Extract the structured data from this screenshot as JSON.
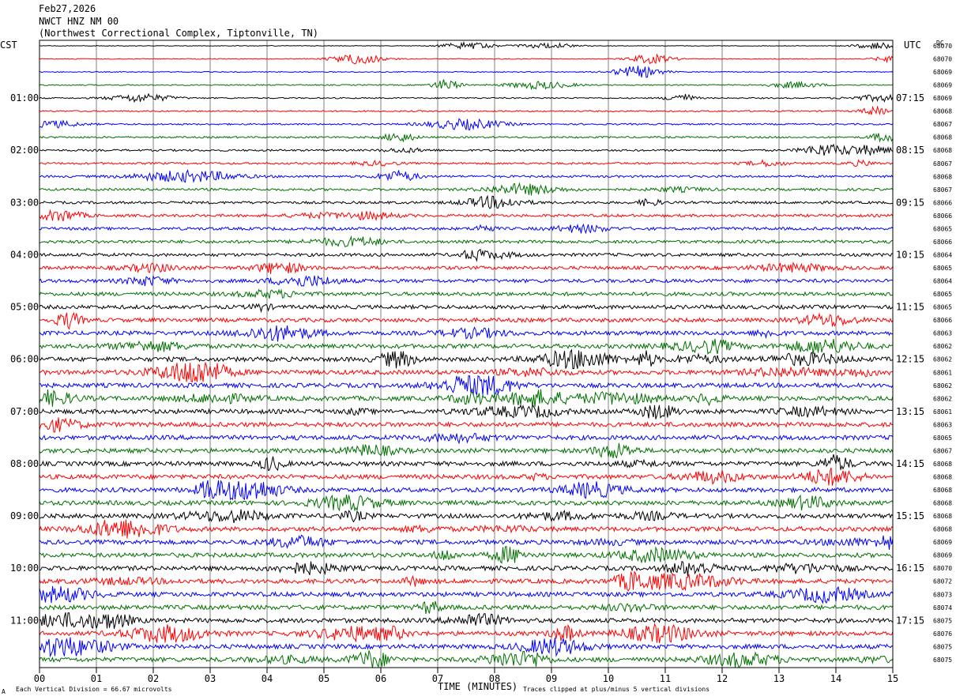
{
  "header": {
    "date": "Feb27,2026",
    "station": "NWCT HNZ NM 00",
    "location": "(Northwest Correctional Complex, Tiptonville, TN)"
  },
  "left_timezone": "CST",
  "right_timezone": "UTC",
  "dc_header": "DC",
  "footer": {
    "scale_note": "Each Vertical Division =   66.67 microvolts",
    "clip_note": "Traces clipped at plus/minus 5 vertical divisions",
    "corner_mark": "A"
  },
  "chart_data": {
    "type": "line",
    "xlabel": "TIME (MINUTES)",
    "xlim": [
      0,
      15
    ],
    "x_ticks": [
      "00",
      "01",
      "02",
      "03",
      "04",
      "05",
      "06",
      "07",
      "08",
      "09",
      "10",
      "11",
      "12",
      "13",
      "14",
      "15"
    ],
    "rows_per_hour": 4,
    "trace_colors": [
      "#000000",
      "#ff0000",
      "#0000ff",
      "#007000"
    ],
    "left_labels": [
      "01:00",
      "02:00",
      "03:00",
      "04:00",
      "05:00",
      "06:00",
      "07:00",
      "08:00",
      "09:00",
      "10:00",
      "11:00"
    ],
    "right_labels": [
      "07:15",
      "08:15",
      "09:15",
      "10:15",
      "11:15",
      "12:15",
      "13:15",
      "14:15",
      "15:15",
      "16:15",
      "17:15"
    ],
    "dc_offsets": [
      "68070",
      "68070",
      "68069",
      "68069",
      "68069",
      "68068",
      "68067",
      "68068",
      "68068",
      "68067",
      "68068",
      "68067",
      "68066",
      "68066",
      "68065",
      "68066",
      "68064",
      "68065",
      "68064",
      "68065",
      "68065",
      "68066",
      "68063",
      "68062",
      "68062",
      "68061",
      "68062",
      "68062",
      "68061",
      "68063",
      "68065",
      "68067",
      "68068",
      "68068",
      "68068",
      "68068",
      "68068",
      "68068",
      "68069",
      "68069",
      "68070",
      "68072",
      "68073",
      "68074",
      "68075",
      "68076",
      "68075",
      "68075"
    ]
  }
}
